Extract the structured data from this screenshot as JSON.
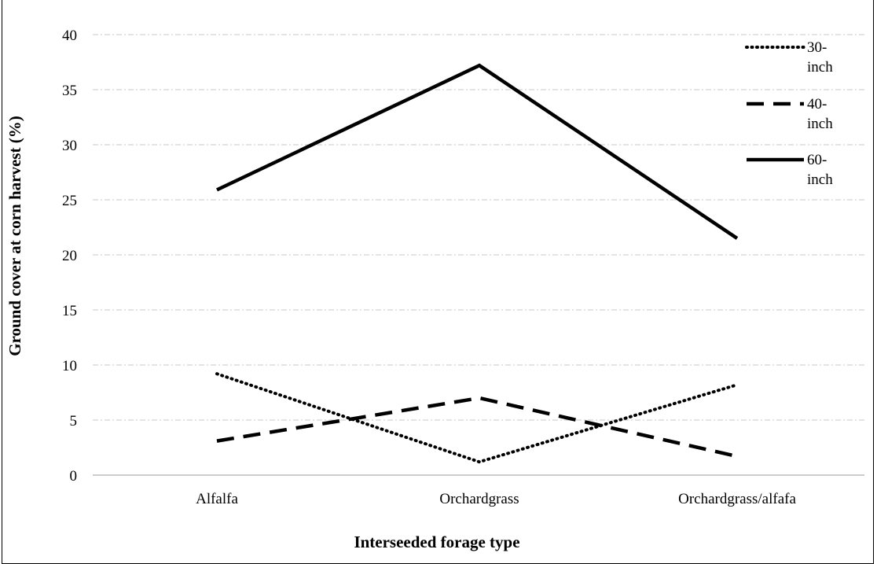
{
  "chart_data": {
    "type": "line",
    "categories": [
      "Alfalfa",
      "Orchardgrass",
      "Orchardgrass/alfafa"
    ],
    "series": [
      {
        "name": "30-inch",
        "values": [
          9.2,
          1.2,
          8.2
        ],
        "style": "dotted"
      },
      {
        "name": "40-inch",
        "values": [
          3.1,
          7.0,
          1.7
        ],
        "style": "dashed"
      },
      {
        "name": "60-inch",
        "values": [
          25.9,
          37.2,
          21.5
        ],
        "style": "solid"
      }
    ],
    "xlabel": "Interseeded forage type",
    "ylabel": "Ground cover at corn harvest (%)",
    "ylim": [
      0,
      40
    ],
    "yticks": [
      0,
      5,
      10,
      15,
      20,
      25,
      30,
      35,
      40
    ],
    "grid": true,
    "legend": "top-right",
    "colors": {
      "line": "#000000",
      "grid": "#c8c8c8",
      "axis": "#9a9a9a"
    }
  }
}
